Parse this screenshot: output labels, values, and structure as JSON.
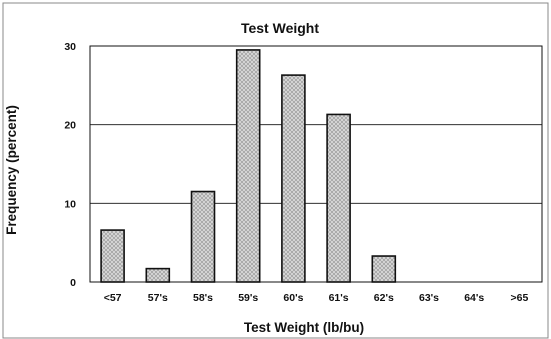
{
  "chart_data": {
    "type": "bar",
    "title": "Test Weight",
    "xlabel": "Test Weight (lb/bu)",
    "ylabel": "Frequency (percent)",
    "categories": [
      "<57",
      "57's",
      "58's",
      "59's",
      "60's",
      "61's",
      "62's",
      "63's",
      "64's",
      ">65"
    ],
    "values": [
      6.6,
      1.7,
      11.5,
      29.5,
      26.3,
      21.3,
      3.3,
      0,
      0,
      0
    ],
    "ylim": [
      0,
      30
    ],
    "yticks": [
      "0",
      "10",
      "20",
      "30"
    ],
    "grid": true,
    "legend": "none",
    "colors": {
      "bar_fill": "#dcdcdc",
      "bar_pattern": "#9a9a9a",
      "bar_stroke": "#111111",
      "grid": "#111111",
      "frame": "#888888"
    }
  }
}
